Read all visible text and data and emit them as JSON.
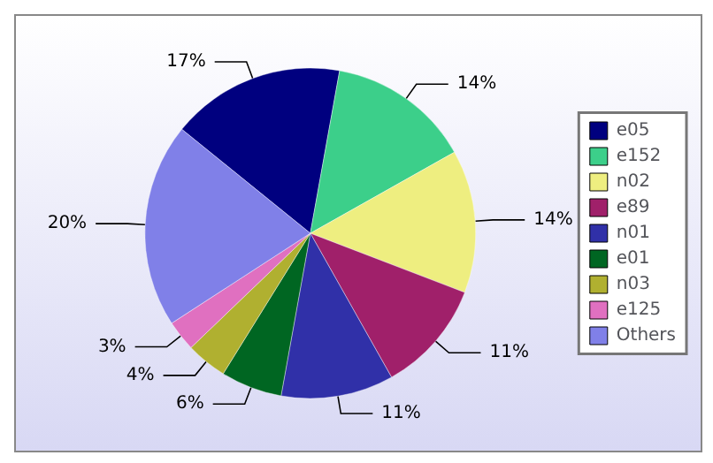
{
  "chart_data": {
    "type": "pie",
    "categories": [
      "e05",
      "e152",
      "n02",
      "e89",
      "n01",
      "e01",
      "n03",
      "e125",
      "Others"
    ],
    "values": [
      17,
      14,
      14,
      11,
      11,
      6,
      4,
      3,
      20
    ],
    "colors": [
      "#00007f",
      "#3ccf8a",
      "#eeee80",
      "#a0206a",
      "#3030a8",
      "#006622",
      "#b0b030",
      "#e070c0",
      "#8080e8"
    ],
    "value_labels": [
      "17%",
      "14%",
      "14%",
      "11%",
      "11%",
      "6%",
      "4%",
      "3%",
      "20%"
    ],
    "legend": "right"
  }
}
